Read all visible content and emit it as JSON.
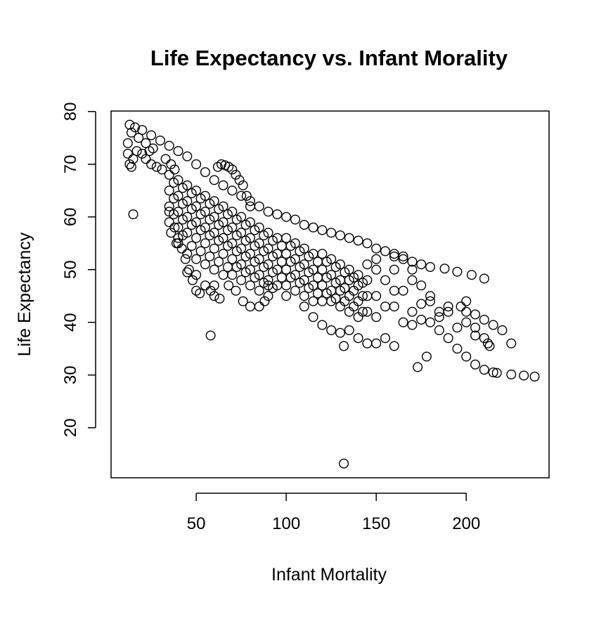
{
  "chart_data": {
    "type": "scatter",
    "title": "Life Expectancy vs. Infant Morality",
    "xlabel": "Infant Mortality",
    "ylabel": "Life Expectancy",
    "xlim": [
      2.7,
      246
    ],
    "ylim": [
      10.5,
      80.1
    ],
    "xticks": [
      50,
      100,
      150,
      200
    ],
    "yticks": [
      20,
      30,
      40,
      50,
      60,
      70,
      80
    ],
    "xtick_labels": [
      "50",
      "100",
      "150",
      "200"
    ],
    "ytick_labels": [
      "20",
      "30",
      "40",
      "50",
      "60",
      "70",
      "80"
    ],
    "grid": false,
    "marker": "open-circle",
    "color": "#000000",
    "points": [
      [
        13,
        77.5
      ],
      [
        16,
        77
      ],
      [
        20,
        76.5
      ],
      [
        25,
        75.5
      ],
      [
        30,
        74.5
      ],
      [
        35,
        73.5
      ],
      [
        40,
        72.5
      ],
      [
        45,
        71.5
      ],
      [
        50,
        70
      ],
      [
        55,
        68.5
      ],
      [
        60,
        67
      ],
      [
        65,
        66
      ],
      [
        70,
        65
      ],
      [
        75,
        64
      ],
      [
        80,
        63
      ],
      [
        85,
        62
      ],
      [
        90,
        61
      ],
      [
        95,
        60.5
      ],
      [
        100,
        60
      ],
      [
        105,
        59.5
      ],
      [
        110,
        58.5
      ],
      [
        115,
        58
      ],
      [
        120,
        57.5
      ],
      [
        125,
        57
      ],
      [
        130,
        56.5
      ],
      [
        135,
        56
      ],
      [
        140,
        55.5
      ],
      [
        145,
        55
      ],
      [
        150,
        54
      ],
      [
        155,
        53.5
      ],
      [
        160,
        53
      ],
      [
        165,
        52.5
      ],
      [
        170,
        51.5
      ],
      [
        175,
        51
      ],
      [
        180,
        50.5
      ],
      [
        188,
        50.2
      ],
      [
        195,
        49.6
      ],
      [
        203,
        49
      ],
      [
        210,
        48.3
      ],
      [
        12,
        74
      ],
      [
        12,
        72
      ],
      [
        13,
        70
      ],
      [
        14,
        69.5
      ],
      [
        15,
        71
      ],
      [
        17,
        72.5
      ],
      [
        20,
        72
      ],
      [
        22,
        71
      ],
      [
        25,
        70
      ],
      [
        28,
        69.5
      ],
      [
        31,
        69
      ],
      [
        14,
        76
      ],
      [
        18,
        75
      ],
      [
        22,
        74
      ],
      [
        24,
        72.5
      ],
      [
        26,
        73
      ],
      [
        33,
        71
      ],
      [
        36,
        70
      ],
      [
        38,
        69
      ],
      [
        62,
        69.5
      ],
      [
        64,
        70
      ],
      [
        66,
        69.8
      ],
      [
        68,
        69.5
      ],
      [
        70,
        69
      ],
      [
        72,
        68
      ],
      [
        74,
        67
      ],
      [
        76,
        66
      ],
      [
        78,
        64
      ],
      [
        80,
        62
      ],
      [
        35,
        61
      ],
      [
        38,
        58
      ],
      [
        40,
        56
      ],
      [
        42,
        54
      ],
      [
        44,
        52
      ],
      [
        46,
        50
      ],
      [
        48,
        48
      ],
      [
        50,
        46
      ],
      [
        55,
        47
      ],
      [
        60,
        45
      ],
      [
        63,
        44.5
      ],
      [
        68,
        47
      ],
      [
        72,
        46
      ],
      [
        76,
        44
      ],
      [
        80,
        43
      ],
      [
        85,
        43
      ],
      [
        88,
        44
      ],
      [
        90,
        47
      ],
      [
        36,
        57
      ],
      [
        39,
        55
      ],
      [
        45,
        49.5
      ],
      [
        52,
        45.5
      ],
      [
        58,
        46
      ],
      [
        35,
        68
      ],
      [
        35,
        65
      ],
      [
        35,
        62
      ],
      [
        35,
        59
      ],
      [
        40,
        67
      ],
      [
        40,
        64
      ],
      [
        40,
        61
      ],
      [
        40,
        58
      ],
      [
        40,
        55
      ],
      [
        45,
        66
      ],
      [
        45,
        63
      ],
      [
        45,
        60
      ],
      [
        45,
        57
      ],
      [
        45,
        53
      ],
      [
        50,
        65
      ],
      [
        50,
        62
      ],
      [
        50,
        59
      ],
      [
        50,
        56
      ],
      [
        50,
        52
      ],
      [
        50,
        49
      ],
      [
        55,
        64
      ],
      [
        55,
        61
      ],
      [
        55,
        58
      ],
      [
        55,
        55
      ],
      [
        55,
        51
      ],
      [
        60,
        63
      ],
      [
        60,
        60
      ],
      [
        60,
        57
      ],
      [
        60,
        54
      ],
      [
        60,
        50
      ],
      [
        60,
        47
      ],
      [
        65,
        62
      ],
      [
        65,
        59
      ],
      [
        65,
        56
      ],
      [
        65,
        53
      ],
      [
        65,
        49
      ],
      [
        70,
        61
      ],
      [
        70,
        58
      ],
      [
        70,
        55
      ],
      [
        70,
        52
      ],
      [
        70,
        49
      ],
      [
        75,
        60
      ],
      [
        75,
        57
      ],
      [
        75,
        54
      ],
      [
        75,
        51
      ],
      [
        75,
        48
      ],
      [
        80,
        59
      ],
      [
        80,
        56
      ],
      [
        80,
        53
      ],
      [
        80,
        50
      ],
      [
        80,
        47
      ],
      [
        85,
        58
      ],
      [
        85,
        55
      ],
      [
        85,
        52
      ],
      [
        85,
        49
      ],
      [
        85,
        46
      ],
      [
        90,
        57
      ],
      [
        90,
        54
      ],
      [
        90,
        51
      ],
      [
        90,
        48
      ],
      [
        90,
        45
      ],
      [
        95,
        56
      ],
      [
        95,
        53
      ],
      [
        95,
        50
      ],
      [
        95,
        47
      ],
      [
        100,
        56
      ],
      [
        100,
        53
      ],
      [
        100,
        50
      ],
      [
        100,
        47
      ],
      [
        100,
        45
      ],
      [
        105,
        55
      ],
      [
        105,
        52
      ],
      [
        105,
        49
      ],
      [
        105,
        46
      ],
      [
        110,
        54
      ],
      [
        110,
        51
      ],
      [
        110,
        48
      ],
      [
        110,
        45
      ],
      [
        115,
        53
      ],
      [
        115,
        50
      ],
      [
        115,
        47
      ],
      [
        115,
        44
      ],
      [
        120,
        53
      ],
      [
        120,
        50
      ],
      [
        120,
        47
      ],
      [
        120,
        44
      ],
      [
        125,
        52
      ],
      [
        125,
        49
      ],
      [
        125,
        46
      ],
      [
        125,
        44
      ],
      [
        130,
        51
      ],
      [
        130,
        48
      ],
      [
        130,
        46
      ],
      [
        130,
        43
      ],
      [
        135,
        50
      ],
      [
        135,
        48
      ],
      [
        135,
        45
      ],
      [
        135,
        42
      ],
      [
        140,
        49
      ],
      [
        140,
        47
      ],
      [
        140,
        44
      ],
      [
        140,
        41
      ],
      [
        145,
        48
      ],
      [
        145,
        45
      ],
      [
        145,
        42
      ],
      [
        37.5,
        66.5
      ],
      [
        37.5,
        63.5
      ],
      [
        37.5,
        60.5
      ],
      [
        42.5,
        65.5
      ],
      [
        42.5,
        62.5
      ],
      [
        42.5,
        59.5
      ],
      [
        42.5,
        56.5
      ],
      [
        47.5,
        64.5
      ],
      [
        47.5,
        61.5
      ],
      [
        47.5,
        58.5
      ],
      [
        47.5,
        54.5
      ],
      [
        52.5,
        63.5
      ],
      [
        52.5,
        60.5
      ],
      [
        52.5,
        57.5
      ],
      [
        52.5,
        53.5
      ],
      [
        57.5,
        62.5
      ],
      [
        57.5,
        59.5
      ],
      [
        57.5,
        56.5
      ],
      [
        57.5,
        52.5
      ],
      [
        62.5,
        61.5
      ],
      [
        62.5,
        58.5
      ],
      [
        62.5,
        55.5
      ],
      [
        62.5,
        51.5
      ],
      [
        67.5,
        60.5
      ],
      [
        67.5,
        57.5
      ],
      [
        67.5,
        54.5
      ],
      [
        67.5,
        50.5
      ],
      [
        72.5,
        59.5
      ],
      [
        72.5,
        56.5
      ],
      [
        72.5,
        53.5
      ],
      [
        72.5,
        50.5
      ],
      [
        77.5,
        58.5
      ],
      [
        77.5,
        55.5
      ],
      [
        77.5,
        52.5
      ],
      [
        77.5,
        49.5
      ],
      [
        82.5,
        57.5
      ],
      [
        82.5,
        54.5
      ],
      [
        82.5,
        51.5
      ],
      [
        82.5,
        48.5
      ],
      [
        87.5,
        56.5
      ],
      [
        87.5,
        53.5
      ],
      [
        87.5,
        50.5
      ],
      [
        87.5,
        47.5
      ],
      [
        92.5,
        55.5
      ],
      [
        92.5,
        52.5
      ],
      [
        92.5,
        49.5
      ],
      [
        92.5,
        46.5
      ],
      [
        97.5,
        54.5
      ],
      [
        97.5,
        51.5
      ],
      [
        97.5,
        48.5
      ],
      [
        102.5,
        54.5
      ],
      [
        102.5,
        51.5
      ],
      [
        102.5,
        48.5
      ],
      [
        107.5,
        53.5
      ],
      [
        107.5,
        50.5
      ],
      [
        107.5,
        47.5
      ],
      [
        112.5,
        52.5
      ],
      [
        112.5,
        49.5
      ],
      [
        112.5,
        46.5
      ],
      [
        117.5,
        51.5
      ],
      [
        117.5,
        48.5
      ],
      [
        117.5,
        45.5
      ],
      [
        122.5,
        51.5
      ],
      [
        122.5,
        48.5
      ],
      [
        122.5,
        45.5
      ],
      [
        127.5,
        50.5
      ],
      [
        127.5,
        47.5
      ],
      [
        127.5,
        44.5
      ],
      [
        132.5,
        49.5
      ],
      [
        132.5,
        46.5
      ],
      [
        132.5,
        44
      ],
      [
        137.5,
        48.5
      ],
      [
        137.5,
        46
      ],
      [
        137.5,
        43
      ],
      [
        142.5,
        47.5
      ],
      [
        142.5,
        45
      ],
      [
        142.5,
        42
      ],
      [
        110,
        43
      ],
      [
        115,
        41
      ],
      [
        120,
        39.5
      ],
      [
        125,
        38.5
      ],
      [
        130,
        38
      ],
      [
        135,
        38.5
      ],
      [
        140,
        37
      ],
      [
        145,
        36
      ],
      [
        150,
        36
      ],
      [
        155,
        37
      ],
      [
        160,
        35.5
      ],
      [
        150,
        45
      ],
      [
        160,
        43
      ],
      [
        170,
        42
      ],
      [
        180,
        40
      ],
      [
        185,
        38.5
      ],
      [
        190,
        37
      ],
      [
        195,
        35
      ],
      [
        200,
        33.5
      ],
      [
        205,
        32
      ],
      [
        210,
        31
      ],
      [
        215,
        30.5
      ],
      [
        217,
        30.4
      ],
      [
        225,
        30.1
      ],
      [
        232,
        29.9
      ],
      [
        238,
        29.7
      ],
      [
        160,
        50
      ],
      [
        170,
        48
      ],
      [
        180,
        45
      ],
      [
        190,
        42
      ],
      [
        200,
        40
      ],
      [
        205,
        39
      ],
      [
        210,
        37
      ],
      [
        213,
        35.5
      ],
      [
        165,
        46
      ],
      [
        175,
        43.5
      ],
      [
        185,
        41
      ],
      [
        195,
        39
      ],
      [
        205,
        37.5
      ],
      [
        212,
        36
      ],
      [
        200,
        42
      ],
      [
        205,
        41.5
      ],
      [
        210,
        40.5
      ],
      [
        215,
        39.5
      ],
      [
        220,
        38.5
      ],
      [
        225,
        36
      ],
      [
        160,
        52.5
      ],
      [
        165,
        52
      ],
      [
        170,
        50
      ],
      [
        175,
        47
      ],
      [
        180,
        44
      ],
      [
        185,
        42
      ],
      [
        190,
        43
      ],
      [
        197,
        43
      ],
      [
        200,
        44
      ],
      [
        150,
        50
      ],
      [
        155,
        48
      ],
      [
        150,
        41
      ],
      [
        155,
        43
      ],
      [
        160,
        46
      ],
      [
        165,
        40
      ],
      [
        170,
        39.5
      ],
      [
        175,
        40.5
      ],
      [
        145,
        51
      ],
      [
        150,
        52
      ],
      [
        15,
        60.5
      ],
      [
        58,
        37.5
      ],
      [
        132,
        13.2
      ],
      [
        132,
        35.5
      ],
      [
        173,
        31.5
      ],
      [
        178,
        33.5
      ]
    ]
  }
}
